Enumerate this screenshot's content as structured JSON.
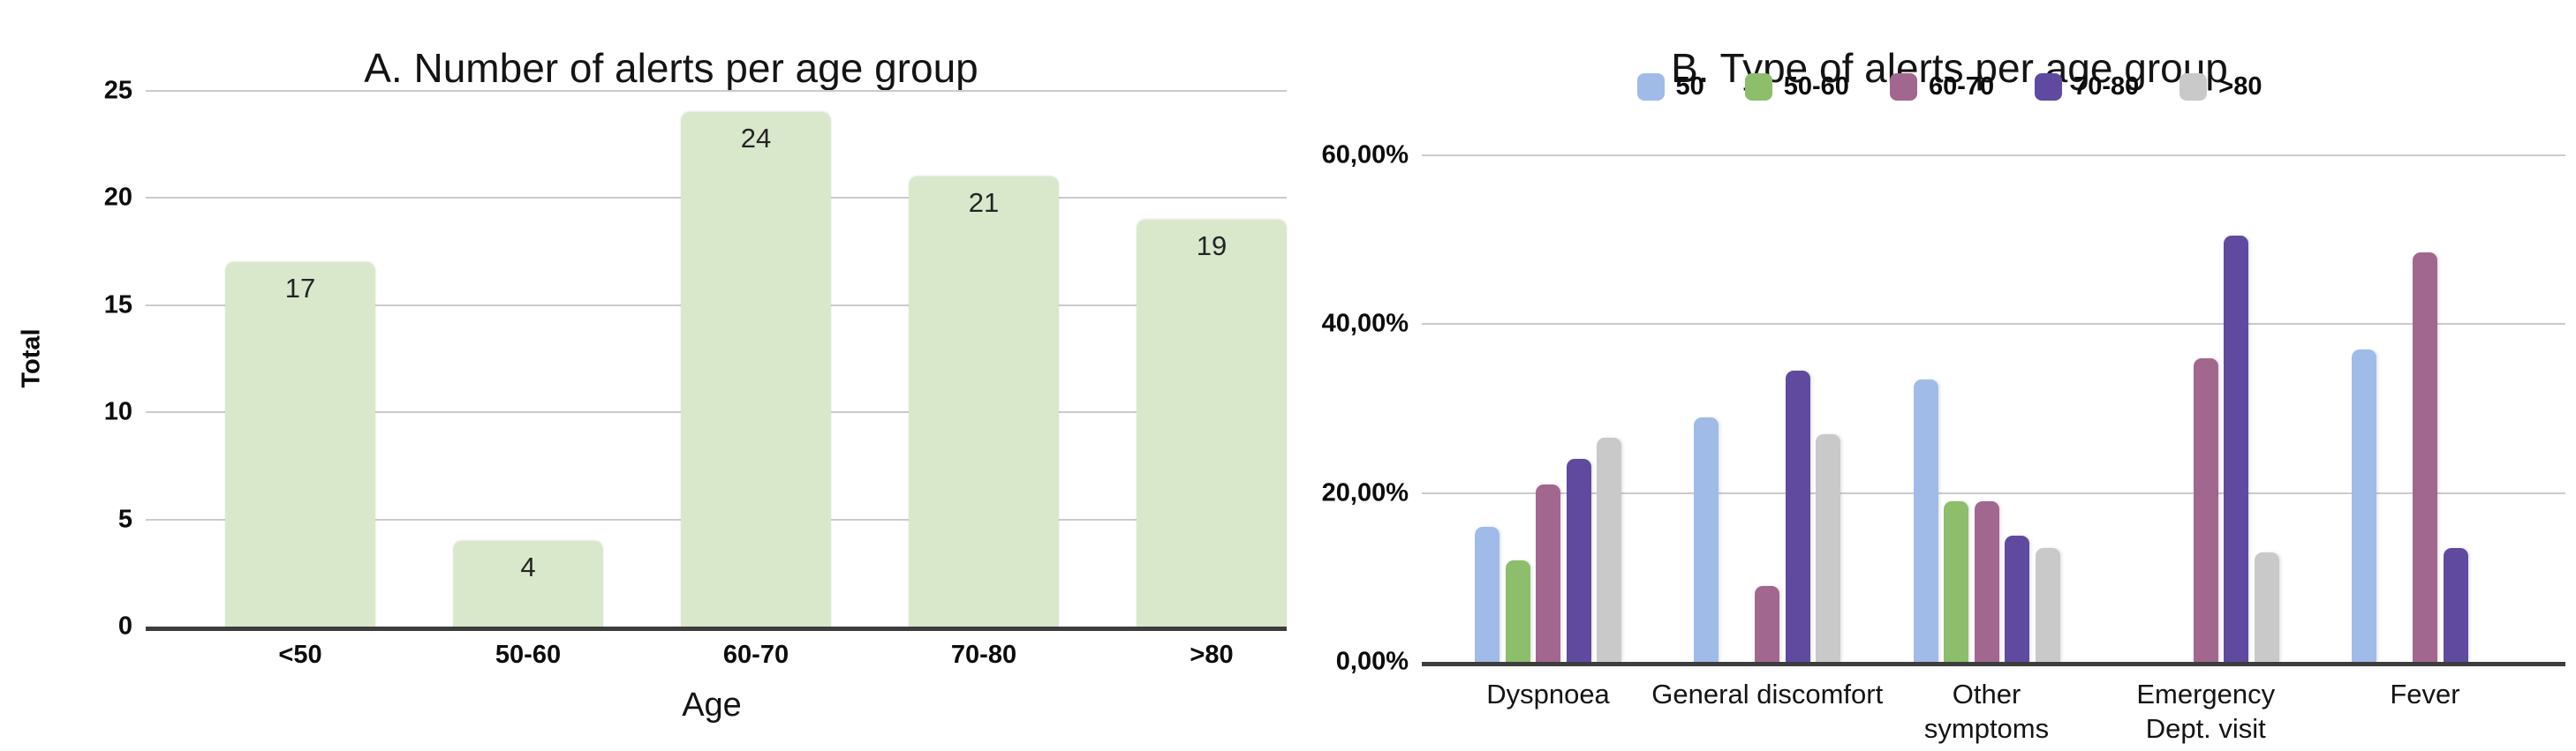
{
  "styles": {
    "grid_color": "#cbcbcb",
    "axis_color": "#3d3d3d",
    "text_color": "#111111",
    "background": "#ffffff",
    "panel_a_bar_color": "#d9e8cb"
  },
  "chart_data": [
    {
      "id": "A",
      "type": "bar",
      "title": "A. Number of alerts per age group",
      "xlabel": "Age",
      "ylabel": "Total",
      "categories": [
        "<50",
        "50-60",
        "60-70",
        "70-80",
        ">80"
      ],
      "values": [
        17,
        4,
        24,
        21,
        19
      ],
      "data_labels": [
        "17",
        "4",
        "24",
        "21",
        "19"
      ],
      "ylim": [
        0,
        25
      ],
      "yticks": [
        0,
        5,
        10,
        15,
        20,
        25
      ],
      "grid": true,
      "bar_color": "#d9e8cb",
      "legend_position": "none"
    },
    {
      "id": "B",
      "type": "bar",
      "title": "B. Type of alerts per age group",
      "xlabel": "",
      "ylabel": "",
      "categories": [
        "Dyspnoea",
        "General discomfort",
        "Other symptoms",
        "Emergency Dept. visit",
        "Fever"
      ],
      "categories_display": [
        "Dyspnoea",
        "General discomfort",
        "Other\nsymptoms",
        "Emergency\nDept. visit",
        "Fever"
      ],
      "series": [
        {
          "name": "50",
          "color": "#a0bbe8",
          "values": [
            16,
            29,
            33.5,
            0,
            37
          ]
        },
        {
          "name": "50-60",
          "color": "#8cbe6c",
          "values": [
            12,
            0,
            19,
            0,
            0
          ]
        },
        {
          "name": "60-70",
          "color": "#a2678f",
          "values": [
            21,
            9,
            19,
            36,
            48.5
          ]
        },
        {
          "name": "70-80",
          "color": "#5f4a9f",
          "values": [
            24,
            34.5,
            15,
            50.5,
            13.5
          ]
        },
        {
          "name": ">80",
          "color": "#c9c9c9",
          "values": [
            26.5,
            27,
            13.5,
            13,
            0
          ]
        }
      ],
      "ylim": [
        0,
        60
      ],
      "yticks": [
        {
          "value": 0,
          "label": "0,00%"
        },
        {
          "value": 20,
          "label": "20,00%"
        },
        {
          "value": 40,
          "label": "40,00%"
        },
        {
          "value": 60,
          "label": "60,00%"
        }
      ],
      "grid": true,
      "legend_position": "top",
      "unit": "%"
    }
  ]
}
